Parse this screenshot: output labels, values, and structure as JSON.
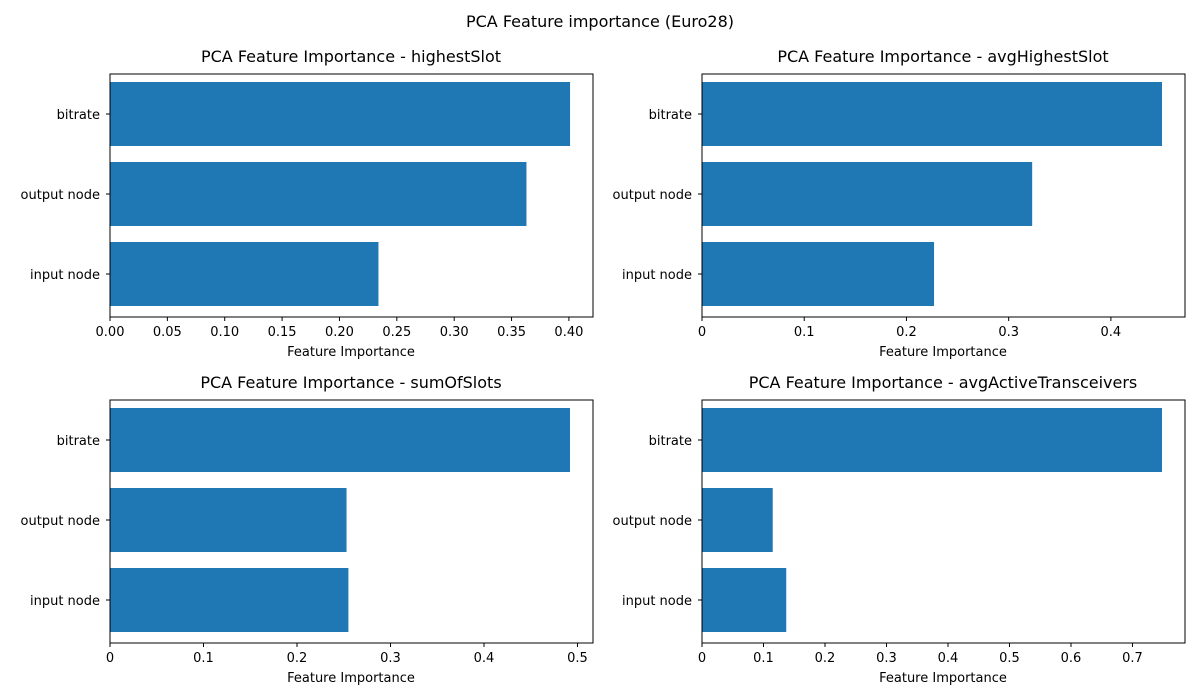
{
  "figure": {
    "suptitle": "PCA Feature importance (Euro28)"
  },
  "chart_data": [
    {
      "type": "bar",
      "orientation": "horizontal",
      "title": "PCA Feature Importance - highestSlot",
      "xlabel": "Feature Importance",
      "ylabel": "",
      "categories": [
        "bitrate",
        "output node",
        "input node"
      ],
      "values": [
        0.401,
        0.363,
        0.234
      ],
      "xlim": [
        0,
        0.421
      ],
      "xticks": [
        0.0,
        0.05,
        0.1,
        0.15,
        0.2,
        0.25,
        0.3,
        0.35,
        0.4
      ],
      "xtick_labels": [
        "0.00",
        "0.05",
        "0.10",
        "0.15",
        "0.20",
        "0.25",
        "0.30",
        "0.35",
        "0.40"
      ],
      "grid": false,
      "bar_color": "#1f77b4"
    },
    {
      "type": "bar",
      "orientation": "horizontal",
      "title": "PCA Feature Importance - avgHighestSlot",
      "xlabel": "Feature Importance",
      "ylabel": "",
      "categories": [
        "bitrate",
        "output node",
        "input node"
      ],
      "values": [
        0.45,
        0.323,
        0.227
      ],
      "xlim": [
        0,
        0.4725
      ],
      "xticks": [
        0.0,
        0.1,
        0.2,
        0.3,
        0.4
      ],
      "xtick_labels": [
        "0",
        "0.1",
        "0.2",
        "0.3",
        "0.4"
      ],
      "grid": false,
      "bar_color": "#1f77b4"
    },
    {
      "type": "bar",
      "orientation": "horizontal",
      "title": "PCA Feature Importance - sumOfSlots",
      "xlabel": "Feature Importance",
      "ylabel": "",
      "categories": [
        "bitrate",
        "output node",
        "input node"
      ],
      "values": [
        0.492,
        0.253,
        0.255
      ],
      "xlim": [
        0,
        0.5166
      ],
      "xticks": [
        0.0,
        0.1,
        0.2,
        0.3,
        0.4,
        0.5
      ],
      "xtick_labels": [
        "0",
        "0.1",
        "0.2",
        "0.3",
        "0.4",
        "0.5"
      ],
      "grid": false,
      "bar_color": "#1f77b4"
    },
    {
      "type": "bar",
      "orientation": "horizontal",
      "title": "PCA Feature Importance - avgActiveTransceivers",
      "xlabel": "Feature Importance",
      "ylabel": "",
      "categories": [
        "bitrate",
        "output node",
        "input node"
      ],
      "values": [
        0.748,
        0.115,
        0.137
      ],
      "xlim": [
        0,
        0.7854
      ],
      "xticks": [
        0.0,
        0.1,
        0.2,
        0.3,
        0.4,
        0.5,
        0.6,
        0.7
      ],
      "xtick_labels": [
        "0",
        "0.1",
        "0.2",
        "0.3",
        "0.4",
        "0.5",
        "0.6",
        "0.7"
      ],
      "grid": false,
      "bar_color": "#1f77b4"
    }
  ]
}
